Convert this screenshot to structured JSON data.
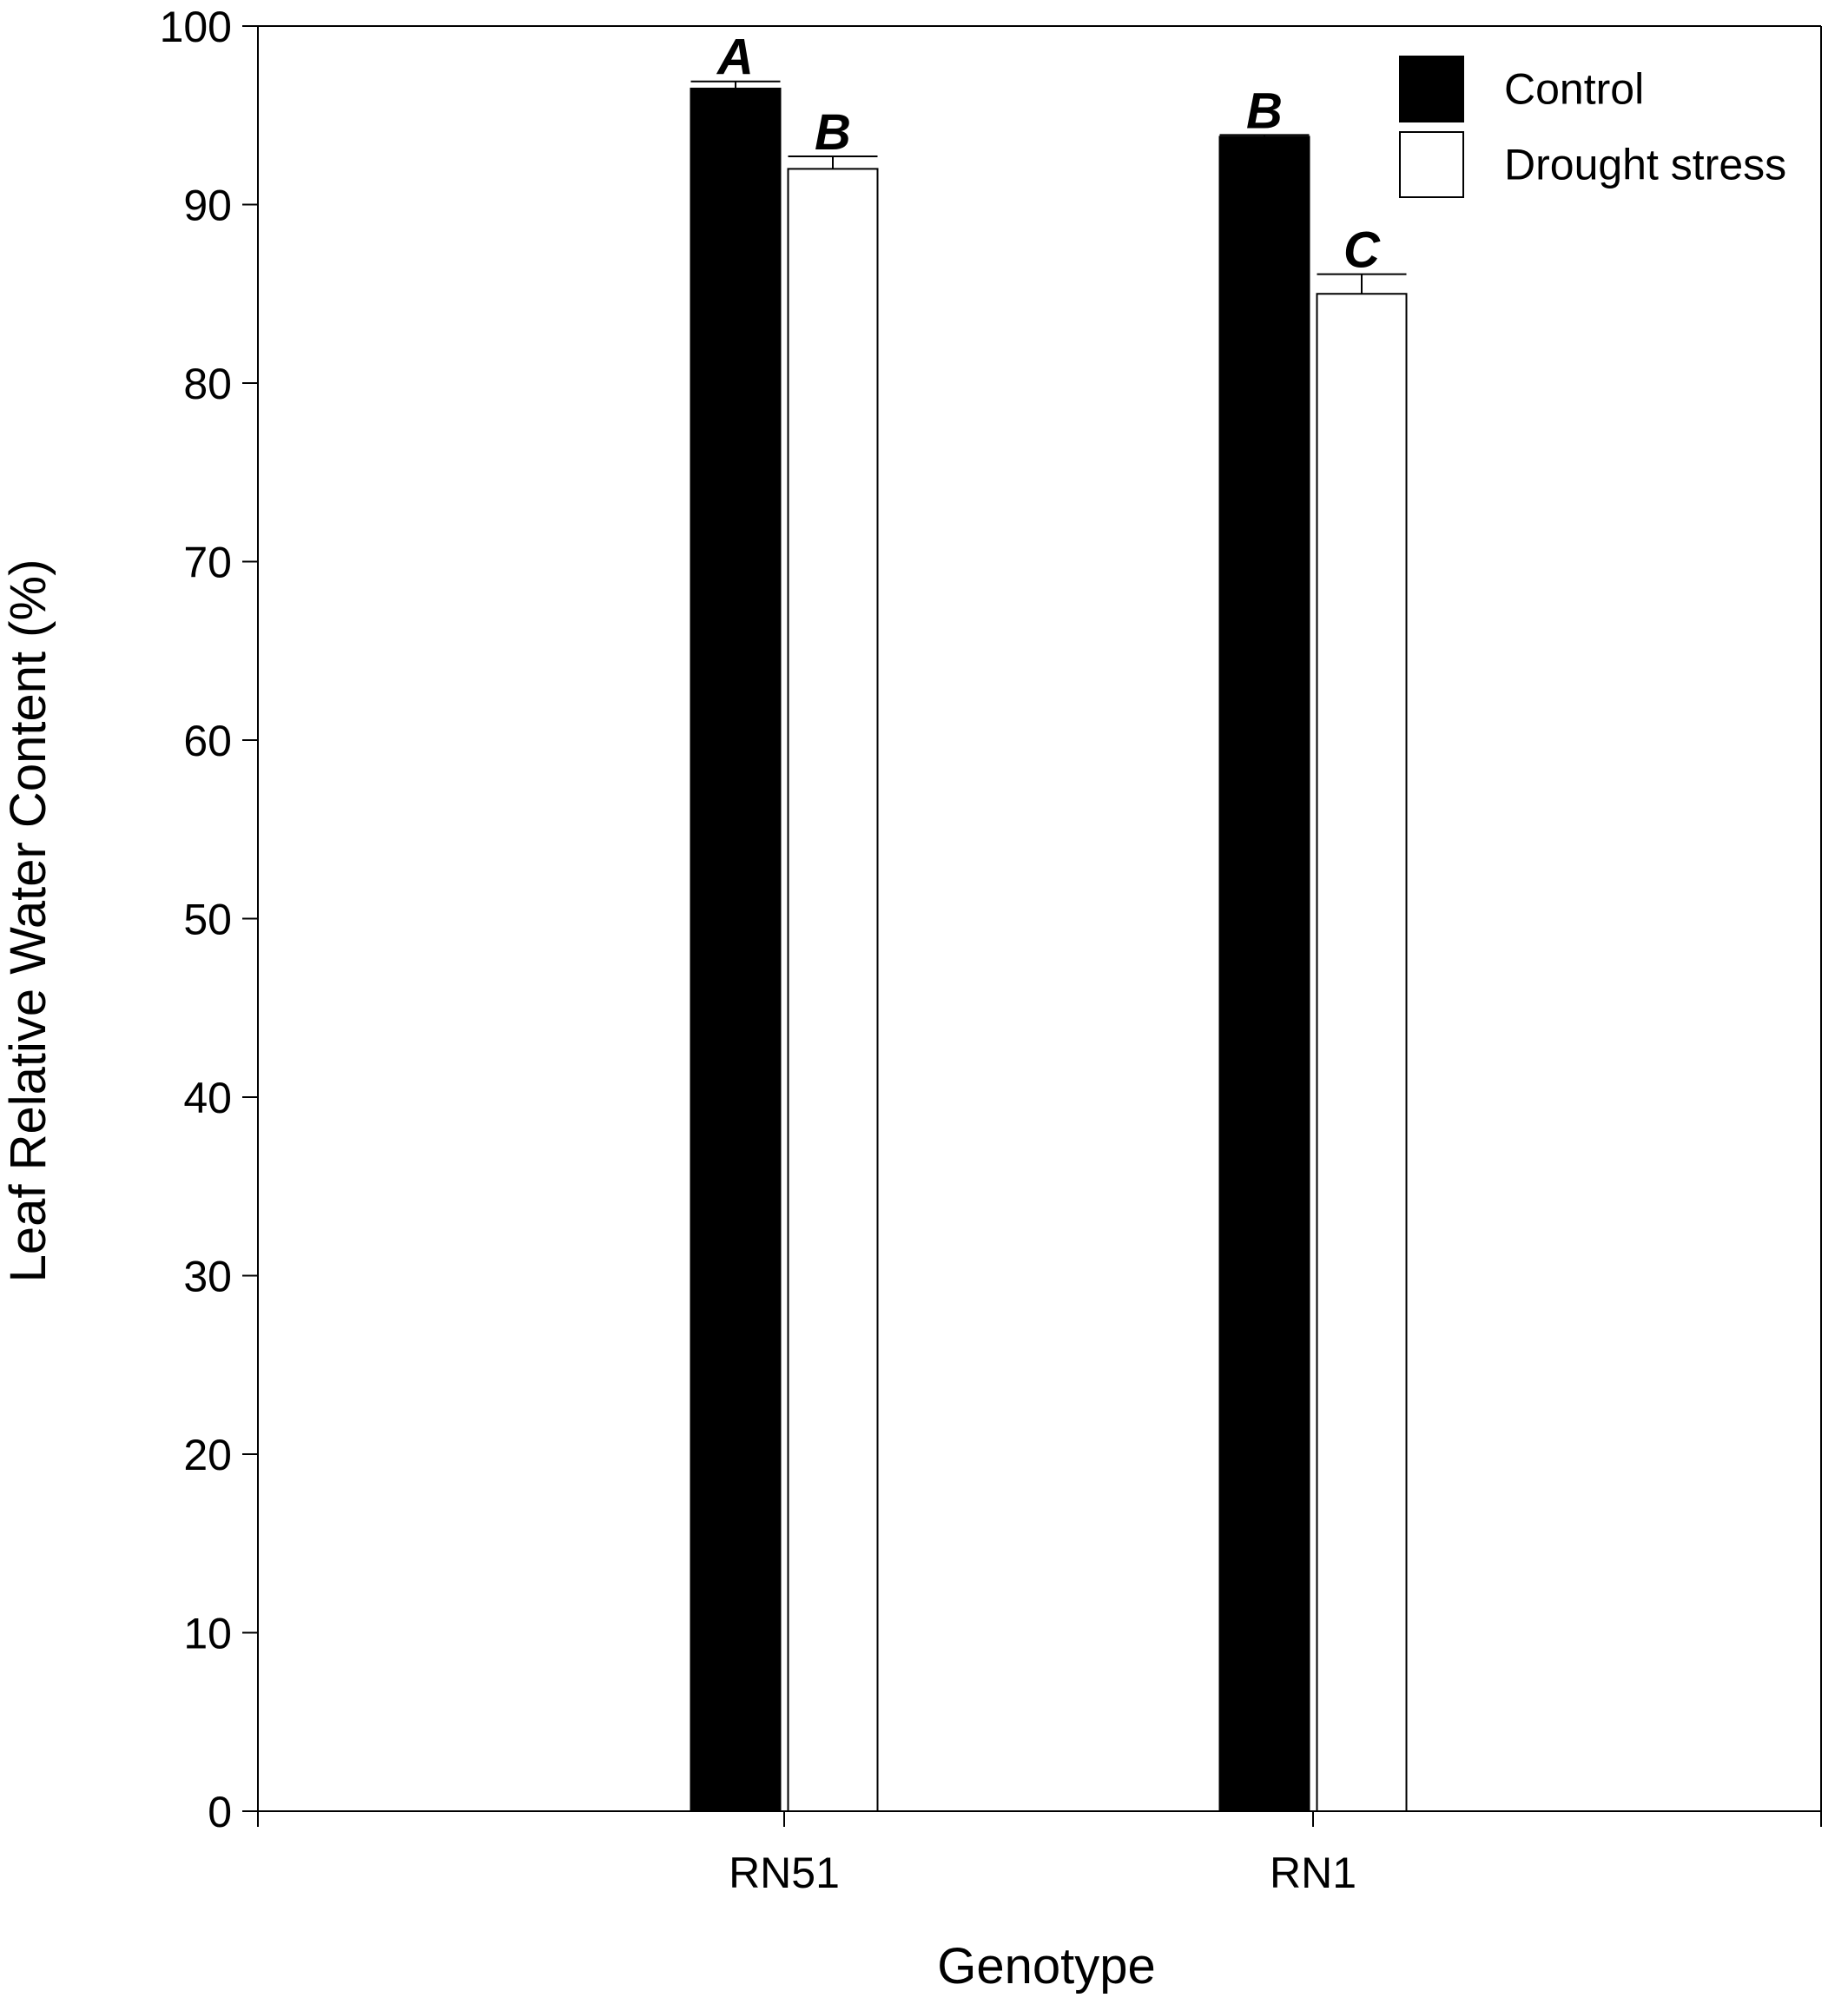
{
  "chart_data": {
    "type": "bar",
    "categories": [
      "RN51",
      "RN1"
    ],
    "series": [
      {
        "name": "Control",
        "color": "#000000",
        "values": [
          96.5,
          93.8
        ],
        "errors": [
          0.4,
          0.1
        ],
        "letters": [
          "A",
          "B"
        ]
      },
      {
        "name": "Drought stress",
        "color": "#ffffff",
        "values": [
          92.0,
          85.0
        ],
        "errors": [
          0.7,
          1.1
        ],
        "letters": [
          "B",
          "C"
        ]
      }
    ],
    "xlabel": "Genotype",
    "ylabel": "Leaf Relative Water Content (%)",
    "ylim": [
      0,
      100
    ],
    "yticks": [
      0,
      10,
      20,
      30,
      40,
      50,
      60,
      70,
      80,
      90,
      100
    ],
    "grid": false,
    "legend_position": "top-right"
  }
}
